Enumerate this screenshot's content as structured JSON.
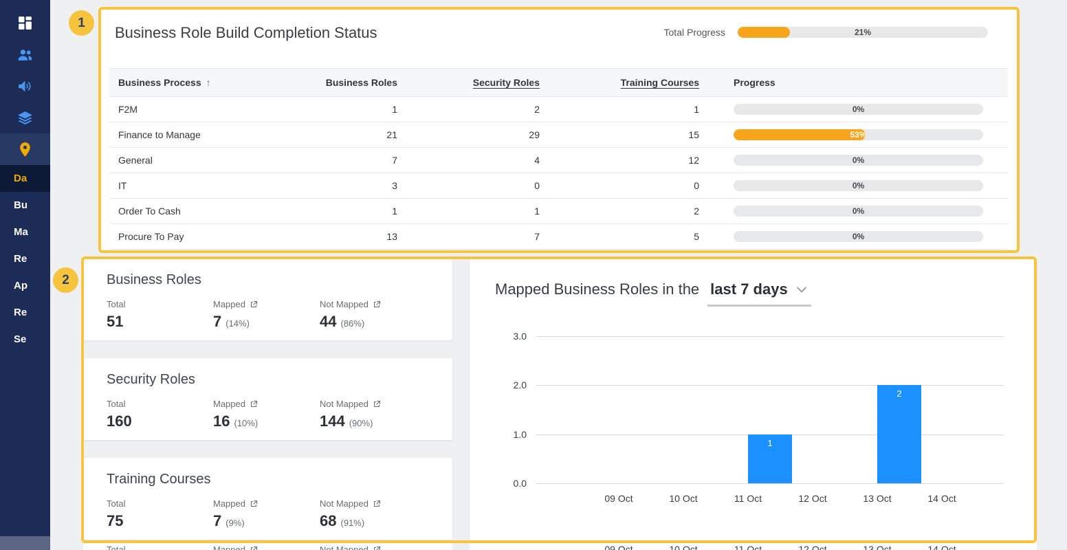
{
  "annotations": {
    "badge_1": "1",
    "badge_2": "2"
  },
  "sidebar": {
    "nav_icons": [
      {
        "icon": "dashboard",
        "tone": "white",
        "active": false
      },
      {
        "icon": "people",
        "tone": "blue",
        "active": false
      },
      {
        "icon": "announcement",
        "tone": "blue",
        "active": false
      },
      {
        "icon": "courses",
        "tone": "blue",
        "active": false
      },
      {
        "icon": "location",
        "tone": "yellow",
        "active": true
      }
    ],
    "items": [
      {
        "label": "Da",
        "active": true
      },
      {
        "label": "Bu",
        "active": false
      },
      {
        "label": "Ma",
        "active": false
      },
      {
        "label": "Re",
        "active": false
      },
      {
        "label": "Ap",
        "active": false
      },
      {
        "label": "Re",
        "active": false
      },
      {
        "label": "Se",
        "active": false
      }
    ]
  },
  "completion_card": {
    "title": "Business Role Build Completion Status",
    "total_progress_label": "Total Progress",
    "total_progress": {
      "pct": 21,
      "label": "21%"
    },
    "table": {
      "columns": {
        "process": "Business Process",
        "business_roles": "Business Roles",
        "security_roles": "Security Roles",
        "training_courses": "Training Courses",
        "progress": "Progress"
      },
      "sort_icon": "↑",
      "rows": [
        {
          "process": "F2M",
          "business_roles": "1",
          "security_roles": "2",
          "training_courses": "1",
          "progress_pct": 0,
          "progress_label": "0%"
        },
        {
          "process": "Finance to Manage",
          "business_roles": "21",
          "security_roles": "29",
          "training_courses": "15",
          "progress_pct": 53,
          "progress_label": "53%"
        },
        {
          "process": "General",
          "business_roles": "7",
          "security_roles": "4",
          "training_courses": "12",
          "progress_pct": 0,
          "progress_label": "0%"
        },
        {
          "process": "IT",
          "business_roles": "3",
          "security_roles": "0",
          "training_courses": "0",
          "progress_pct": 0,
          "progress_label": "0%"
        },
        {
          "process": "Order To Cash",
          "business_roles": "1",
          "security_roles": "1",
          "training_courses": "2",
          "progress_pct": 0,
          "progress_label": "0%"
        },
        {
          "process": "Procure To Pay",
          "business_roles": "13",
          "security_roles": "7",
          "training_courses": "5",
          "progress_pct": 0,
          "progress_label": "0%"
        }
      ]
    }
  },
  "stat_cards": [
    {
      "title": "Business Roles",
      "total_label": "Total",
      "total": "51",
      "mapped_label": "Mapped",
      "mapped": "7",
      "mapped_pct": "(14%)",
      "not_mapped_label": "Not Mapped",
      "not_mapped": "44",
      "not_mapped_pct": "(86%)"
    },
    {
      "title": "Security Roles",
      "total_label": "Total",
      "total": "160",
      "mapped_label": "Mapped",
      "mapped": "16",
      "mapped_pct": "(10%)",
      "not_mapped_label": "Not Mapped",
      "not_mapped": "144",
      "not_mapped_pct": "(90%)"
    },
    {
      "title": "Training Courses",
      "total_label": "Total",
      "total": "75",
      "mapped_label": "Mapped",
      "mapped": "7",
      "mapped_pct": "(9%)",
      "not_mapped_label": "Not Mapped",
      "not_mapped": "68",
      "not_mapped_pct": "(91%)"
    }
  ],
  "chart_card": {
    "title_prefix": "Mapped Business Roles in the",
    "range_selector": "last 7 days"
  },
  "chart_data": {
    "type": "bar",
    "title": "Mapped Business Roles in the last 7 days",
    "categories": [
      "09 Oct",
      "10 Oct",
      "11 Oct",
      "12 Oct",
      "13 Oct",
      "14 Oct"
    ],
    "values": [
      0,
      0,
      1,
      0,
      2,
      0
    ],
    "bar_labels": [
      "",
      "",
      "1",
      "",
      "2",
      ""
    ],
    "ylim": [
      0,
      3
    ],
    "yticks": [
      "0.0",
      "1.0",
      "2.0",
      "3.0"
    ],
    "grid": true,
    "legend": false,
    "bar_color": "#1a91ff"
  },
  "cutoff_row": {
    "stat_labels": [
      "Total",
      "Mapped",
      "Not Mapped"
    ],
    "axis_labels": [
      "09 Oct",
      "10 Oct",
      "11 Oct",
      "12 Oct",
      "13 Oct",
      "14 Oct"
    ]
  },
  "colors": {
    "annotation_yellow": "#f6c43e",
    "sap_accent_yellow": "#f0ab00",
    "progress_fill_orange": "#f6a51d",
    "chart_bar_blue": "#1a91ff",
    "sidebar_navy": "#1d2c56",
    "icon_blue": "#4a97f2"
  }
}
